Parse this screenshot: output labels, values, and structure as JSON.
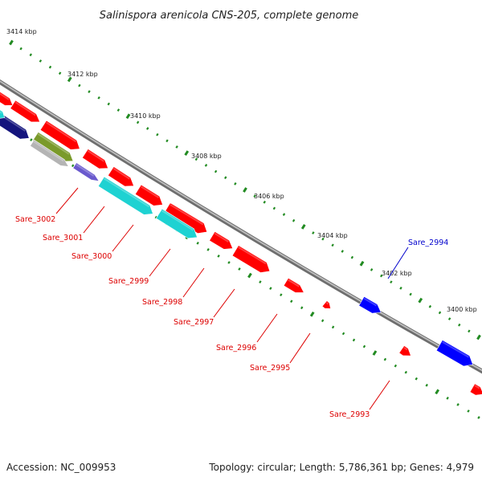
{
  "title": "Salinispora arenicola CNS-205, complete genome",
  "footer": {
    "accession": "Accession: NC_009953",
    "summary": "Topology: circular; Length: 5,786,361 bp; Genes: 4,979"
  },
  "colors": {
    "forward_gene": "#ff0000",
    "reverse_gene": "#0000ff",
    "tick": "#228b22",
    "backbone": "#888888",
    "label_forward": "#dd0000",
    "label_reverse": "#0000cc",
    "cyan_gene": "#1ed2d2",
    "navy_gene": "#14147d",
    "olive_gene": "#7a9a2a",
    "gray_gene": "#b4b4b4",
    "purple_gene": "#6a5acd"
  },
  "kbp_labels": [
    "3414 kbp",
    "3412 kbp",
    "3410 kbp",
    "3408 kbp",
    "3406 kbp",
    "3404 kbp",
    "3402 kbp",
    "3400 kbp"
  ],
  "gene_labels": [
    {
      "text": "Sare_3002",
      "strand": "forward"
    },
    {
      "text": "Sare_3001",
      "strand": "forward"
    },
    {
      "text": "Sare_3000",
      "strand": "forward"
    },
    {
      "text": "Sare_2999",
      "strand": "forward"
    },
    {
      "text": "Sare_2998",
      "strand": "forward"
    },
    {
      "text": "Sare_2997",
      "strand": "forward"
    },
    {
      "text": "Sare_2996",
      "strand": "forward"
    },
    {
      "text": "Sare_2995",
      "strand": "forward"
    },
    {
      "text": "Sare_2994",
      "strand": "reverse"
    },
    {
      "text": "Sare_2993",
      "strand": "forward"
    }
  ]
}
